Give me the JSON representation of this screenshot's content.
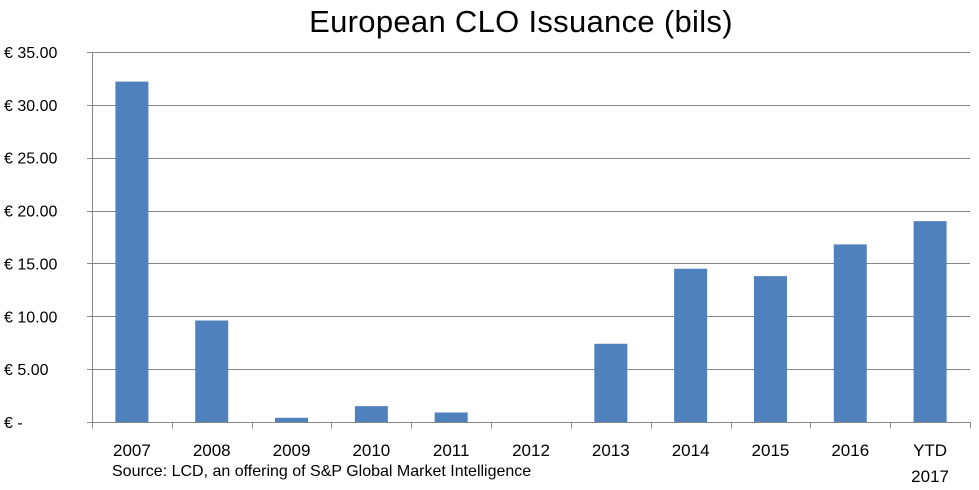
{
  "chart_data": {
    "type": "bar",
    "title": "European CLO Issuance (bils)",
    "source": "Source: LCD, an offering of S&P Global Market Intelligence",
    "categories": [
      "2007",
      "2008",
      "2009",
      "2010",
      "2011",
      "2012",
      "2013",
      "2014",
      "2015",
      "2016",
      "YTD 2017"
    ],
    "category_lines": [
      [
        "2007"
      ],
      [
        "2008"
      ],
      [
        "2009"
      ],
      [
        "2010"
      ],
      [
        "2011"
      ],
      [
        "2012"
      ],
      [
        "2013"
      ],
      [
        "2014"
      ],
      [
        "2015"
      ],
      [
        "2016"
      ],
      [
        "YTD",
        "2017"
      ]
    ],
    "values": [
      32.2,
      9.6,
      0.4,
      1.5,
      0.9,
      0.0,
      7.4,
      14.5,
      13.8,
      16.8,
      19.0
    ],
    "ylim": [
      0,
      35
    ],
    "yticks": [
      0,
      5,
      10,
      15,
      20,
      25,
      30,
      35
    ],
    "ytick_labels": [
      "€ -",
      "€ 5.00",
      "€ 10.00",
      "€ 15.00",
      "€ 20.00",
      "€ 25.00",
      "€ 30.00",
      "€ 35.00"
    ],
    "xlabel": "",
    "ylabel": "",
    "grid": true,
    "legend": false,
    "bar_color": "#4f81bd",
    "grid_color": "#868686"
  }
}
